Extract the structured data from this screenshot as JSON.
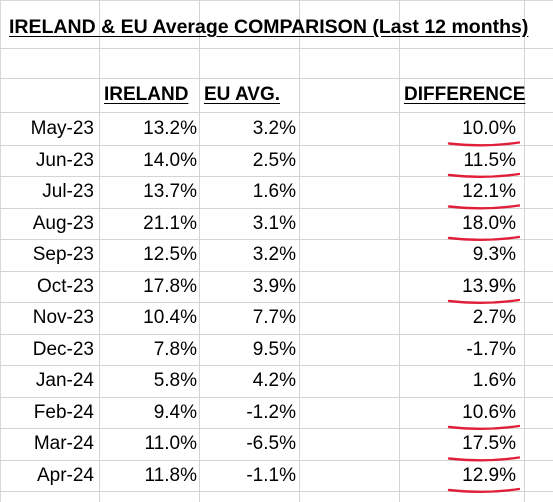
{
  "title": "IRELAND & EU Average COMPARISON (Last 12 months)",
  "headers": {
    "ireland": "IRELAND",
    "eu_avg": "EU AVG.",
    "difference": "DIFFERENCE"
  },
  "rows": [
    {
      "month": "May-23",
      "ireland": "13.2%",
      "eu_avg": "3.2%",
      "difference": "10.0%",
      "marked": true
    },
    {
      "month": "Jun-23",
      "ireland": "14.0%",
      "eu_avg": "2.5%",
      "difference": "11.5%",
      "marked": true
    },
    {
      "month": "Jul-23",
      "ireland": "13.7%",
      "eu_avg": "1.6%",
      "difference": "12.1%",
      "marked": true
    },
    {
      "month": "Aug-23",
      "ireland": "21.1%",
      "eu_avg": "3.1%",
      "difference": "18.0%",
      "marked": true
    },
    {
      "month": "Sep-23",
      "ireland": "12.5%",
      "eu_avg": "3.2%",
      "difference": "9.3%",
      "marked": false
    },
    {
      "month": "Oct-23",
      "ireland": "17.8%",
      "eu_avg": "3.9%",
      "difference": "13.9%",
      "marked": true
    },
    {
      "month": "Nov-23",
      "ireland": "10.4%",
      "eu_avg": "7.7%",
      "difference": "2.7%",
      "marked": false
    },
    {
      "month": "Dec-23",
      "ireland": "7.8%",
      "eu_avg": "9.5%",
      "difference": "-1.7%",
      "marked": false
    },
    {
      "month": "Jan-24",
      "ireland": "5.8%",
      "eu_avg": "4.2%",
      "difference": "1.6%",
      "marked": false
    },
    {
      "month": "Feb-24",
      "ireland": "9.4%",
      "eu_avg": "-1.2%",
      "difference": "10.6%",
      "marked": true
    },
    {
      "month": "Mar-24",
      "ireland": "11.0%",
      "eu_avg": "-6.5%",
      "difference": "17.5%",
      "marked": true
    },
    {
      "month": "Apr-24",
      "ireland": "11.8%",
      "eu_avg": "-1.1%",
      "difference": "12.9%",
      "marked": true
    }
  ],
  "colors": {
    "grid": "#d4d4d4",
    "annotation": "#e0203a"
  }
}
